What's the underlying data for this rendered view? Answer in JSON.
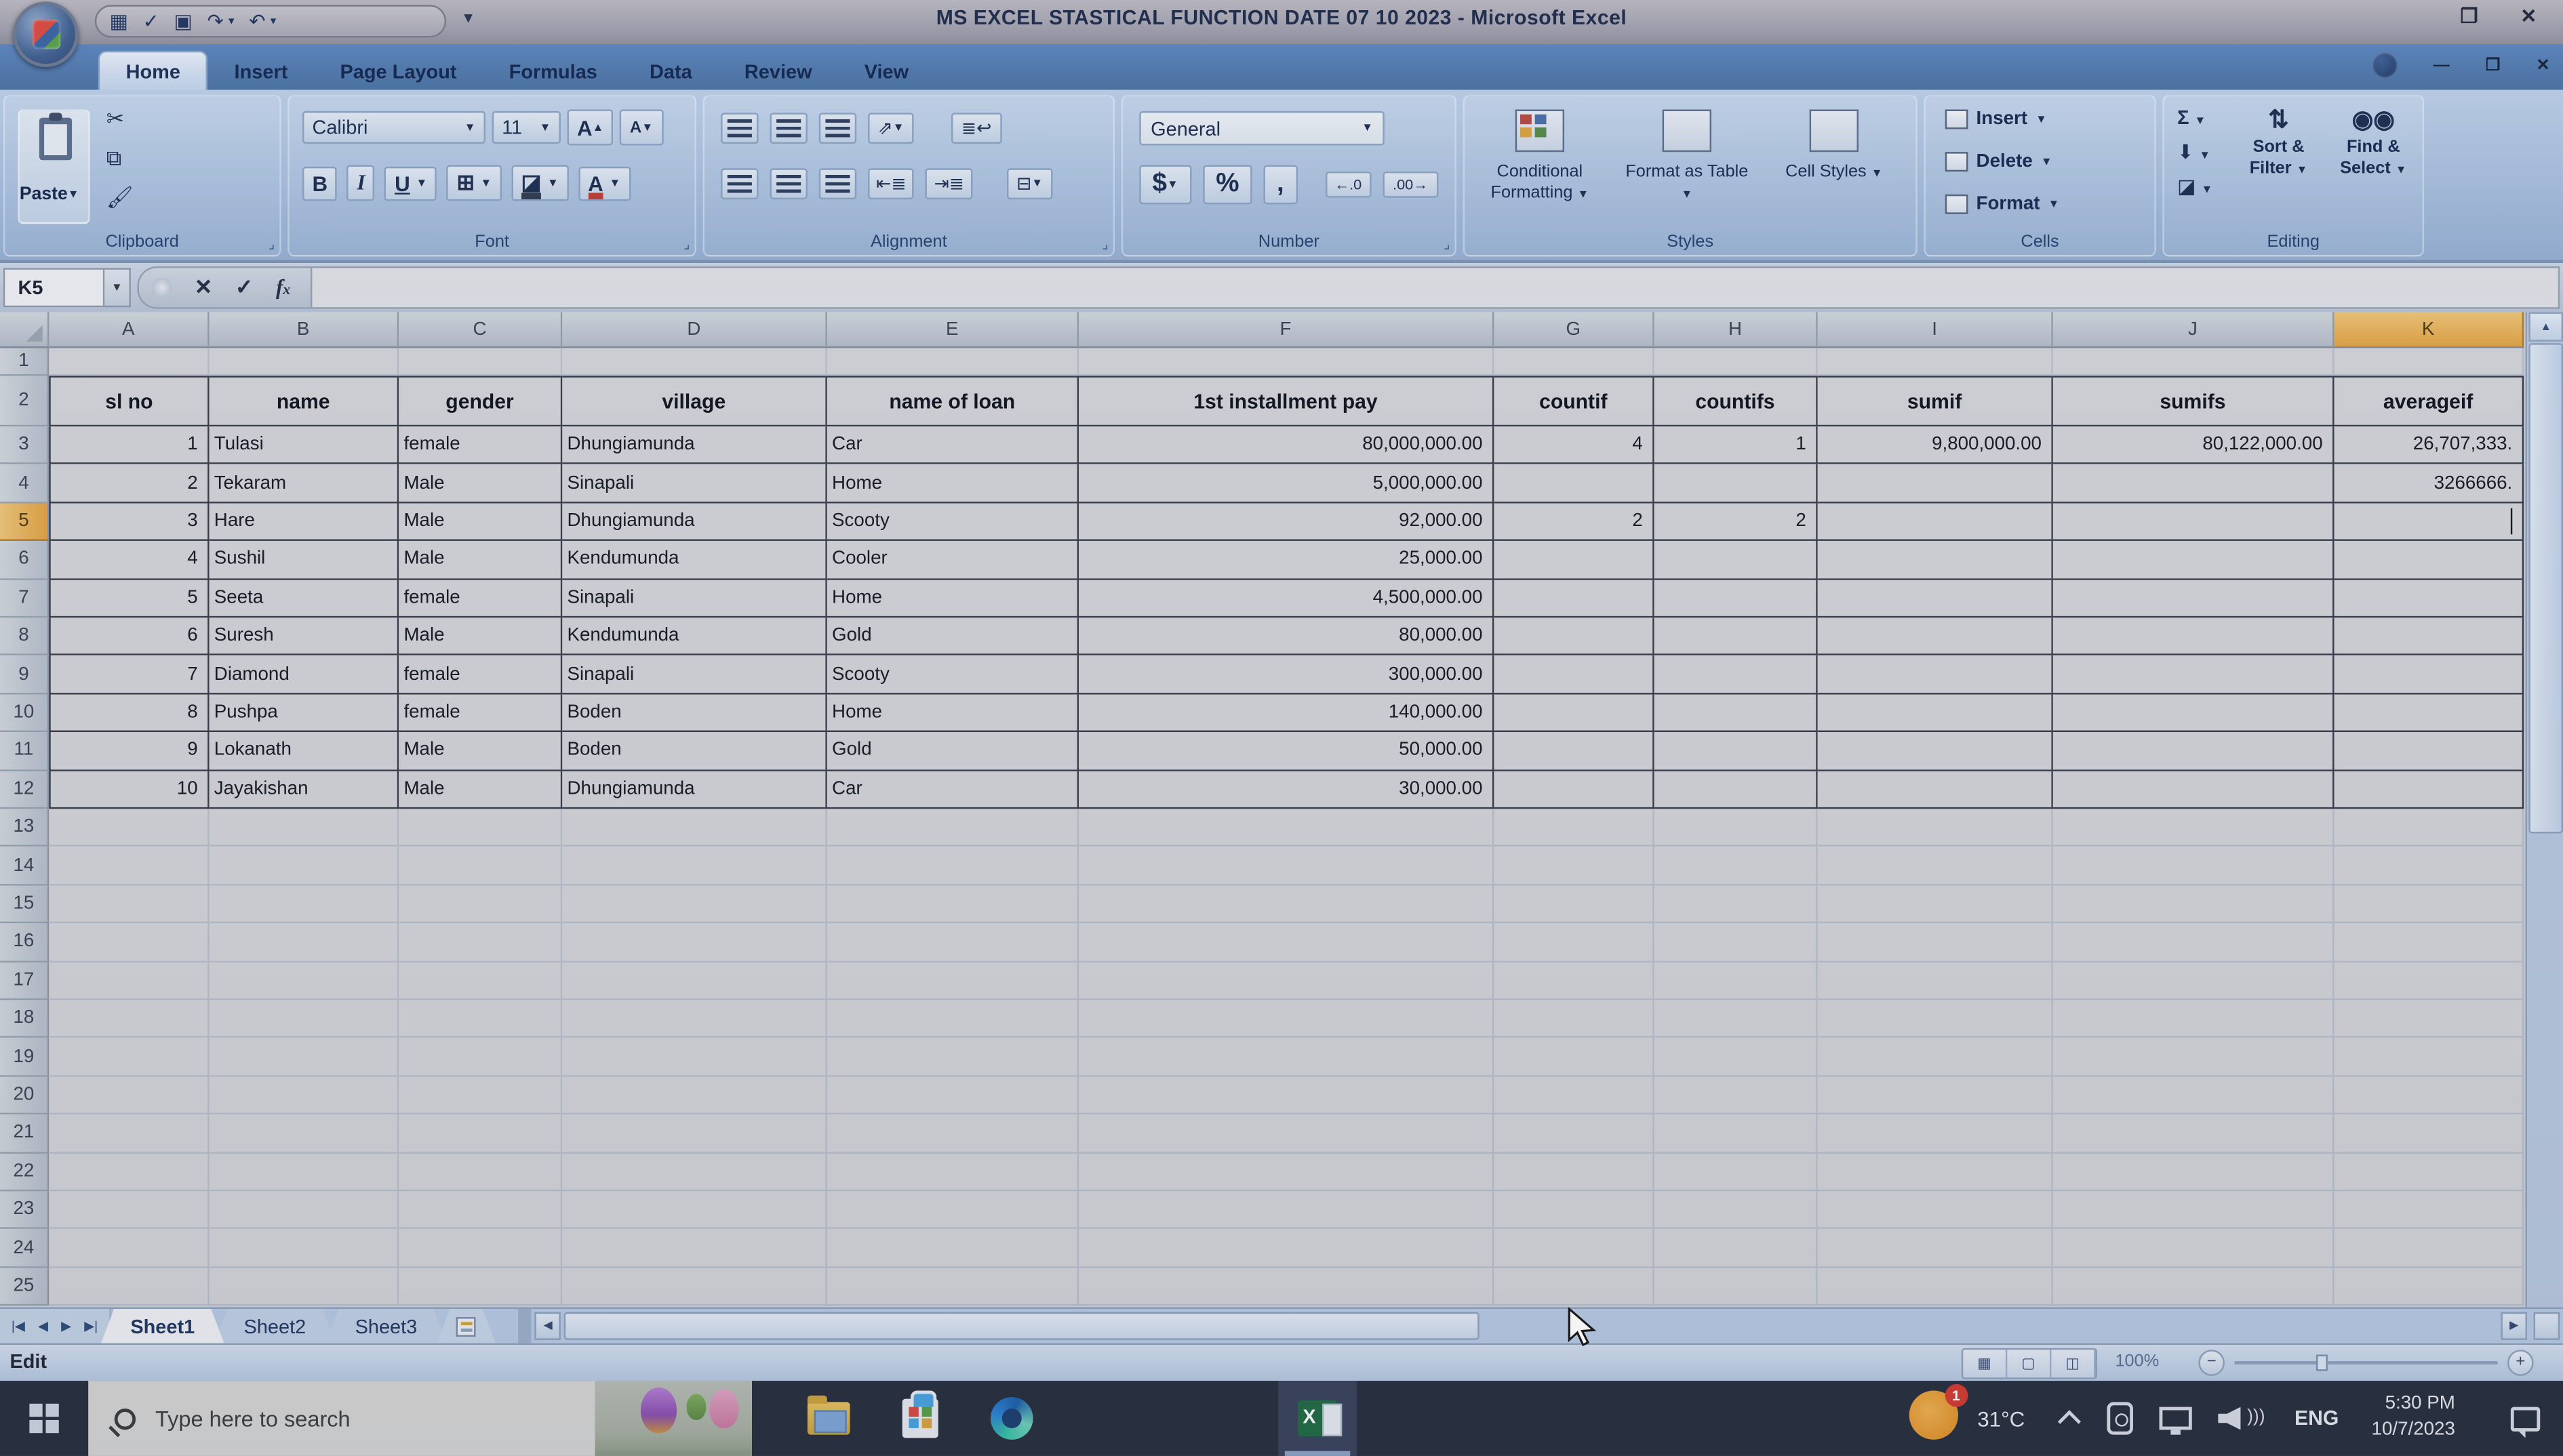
{
  "window": {
    "title": "MS EXCEL STASTICAL FUNCTION DATE 07 10 2023 - Microsoft Excel"
  },
  "ribbon": {
    "tabs": [
      {
        "label": "Home",
        "active": true
      },
      {
        "label": "Insert",
        "active": false
      },
      {
        "label": "Page Layout",
        "active": false
      },
      {
        "label": "Formulas",
        "active": false
      },
      {
        "label": "Data",
        "active": false
      },
      {
        "label": "Review",
        "active": false
      },
      {
        "label": "View",
        "active": false
      }
    ],
    "clipboard": {
      "label": "Clipboard",
      "paste_label": "Paste"
    },
    "font": {
      "label": "Font",
      "family": "Calibri",
      "size": "11"
    },
    "alignment": {
      "label": "Alignment"
    },
    "number": {
      "label": "Number",
      "format": "General"
    },
    "styles": {
      "label": "Styles",
      "items": [
        "Conditional Formatting",
        "Format as Table",
        "Cell Styles"
      ]
    },
    "cells": {
      "label": "Cells",
      "items": [
        "Insert",
        "Delete",
        "Format"
      ]
    },
    "editing": {
      "label": "Editing",
      "items": [
        "Sort & Filter",
        "Find & Select"
      ]
    }
  },
  "formula_bar": {
    "name_box": "K5",
    "formula_value": ""
  },
  "grid": {
    "columns": [
      "A",
      "B",
      "C",
      "D",
      "E",
      "F",
      "G",
      "H",
      "I",
      "J",
      "K"
    ],
    "row_count": 25,
    "selected_column": "K",
    "selected_row": 5,
    "selected_cell": "K5"
  },
  "sheet": {
    "header_row_number": 2,
    "headers": [
      "sl no",
      "name",
      "gender",
      "village",
      "name of loan",
      "1st installment pay",
      "countif",
      "countifs",
      "sumif",
      "sumifs",
      "averageif"
    ],
    "first_data_row_number": 3,
    "rows": [
      [
        "1",
        "Tulasi",
        "female",
        "Dhungiamunda",
        "Car",
        "80,000,000.00",
        "4",
        "1",
        "9,800,000.00",
        "80,122,000.00",
        "26,707,333."
      ],
      [
        "2",
        "Tekaram",
        "Male",
        "Sinapali",
        "Home",
        "5,000,000.00",
        "",
        "",
        "",
        "",
        "3266666."
      ],
      [
        "3",
        "Hare",
        "Male",
        "Dhungiamunda",
        "Scooty",
        "92,000.00",
        "2",
        "2",
        "",
        "",
        ""
      ],
      [
        "4",
        "Sushil",
        "Male",
        "Kendumunda",
        "Cooler",
        "25,000.00",
        "",
        "",
        "",
        "",
        ""
      ],
      [
        "5",
        "Seeta",
        "female",
        "Sinapali",
        "Home",
        "4,500,000.00",
        "",
        "",
        "",
        "",
        ""
      ],
      [
        "6",
        "Suresh",
        "Male",
        "Kendumunda",
        "Gold",
        "80,000.00",
        "",
        "",
        "",
        "",
        ""
      ],
      [
        "7",
        "Diamond",
        "female",
        "Sinapali",
        "Scooty",
        "300,000.00",
        "",
        "",
        "",
        "",
        ""
      ],
      [
        "8",
        "Pushpa",
        "female",
        "Boden",
        "Home",
        "140,000.00",
        "",
        "",
        "",
        "",
        ""
      ],
      [
        "9",
        "Lokanath",
        "Male",
        "Boden",
        "Gold",
        "50,000.00",
        "",
        "",
        "",
        "",
        ""
      ],
      [
        "10",
        "Jayakishan",
        "Male",
        "Dhungiamunda",
        "Car",
        "30,000.00",
        "",
        "",
        "",
        "",
        ""
      ]
    ]
  },
  "sheet_tabs": {
    "tabs": [
      "Sheet1",
      "Sheet2",
      "Sheet3"
    ],
    "active": "Sheet1"
  },
  "status_bar": {
    "mode": "Edit"
  },
  "taskbar": {
    "search_placeholder": "Type here to search",
    "weather_badge": "1",
    "temperature": "31°C",
    "language": "ENG",
    "time": "5:30 PM",
    "date": "10/7/2023"
  },
  "colors": {
    "ribbon_blue": "#5d85bd",
    "selected_header_orange": "#e2a23f",
    "taskbar_dark": "#262d3c",
    "excel_green": "#1e6b41",
    "weather_orange": "#e08a1e",
    "badge_red": "#d43a2f"
  }
}
